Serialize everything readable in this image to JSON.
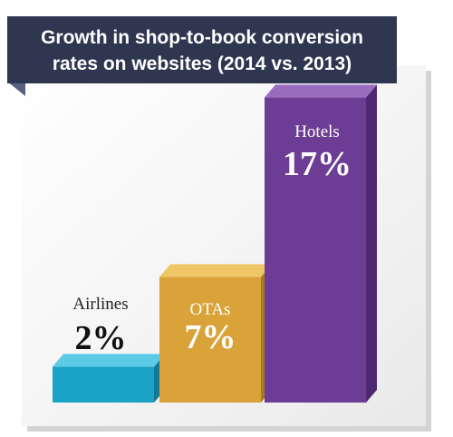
{
  "title_line1": "Growth in shop-to-book conversion",
  "title_line2": "rates on websites (2014 vs. 2013)",
  "colors": {
    "banner": "#2e3650",
    "banner_fold": "#5a6080",
    "background": "#f2f2f2",
    "card_shadow": "#cfcfcf"
  },
  "chart_data": {
    "type": "bar",
    "title": "Growth in shop-to-book conversion rates on websites (2014 vs. 2013)",
    "categories": [
      "Airlines",
      "OTAs",
      "Hotels"
    ],
    "values": [
      2,
      7,
      17
    ],
    "value_labels": [
      "2%",
      "7%",
      "17%"
    ],
    "unit": "%",
    "grid": false,
    "legend": "none",
    "bar_colors": [
      {
        "front": "#1ba3c6",
        "top": "#5ccbe6",
        "side": "#137a96"
      },
      {
        "front": "#d9a33a",
        "top": "#f0c766",
        "side": "#a97a22"
      },
      {
        "front": "#6d3d95",
        "top": "#9a6cc0",
        "side": "#4d2870"
      }
    ]
  }
}
